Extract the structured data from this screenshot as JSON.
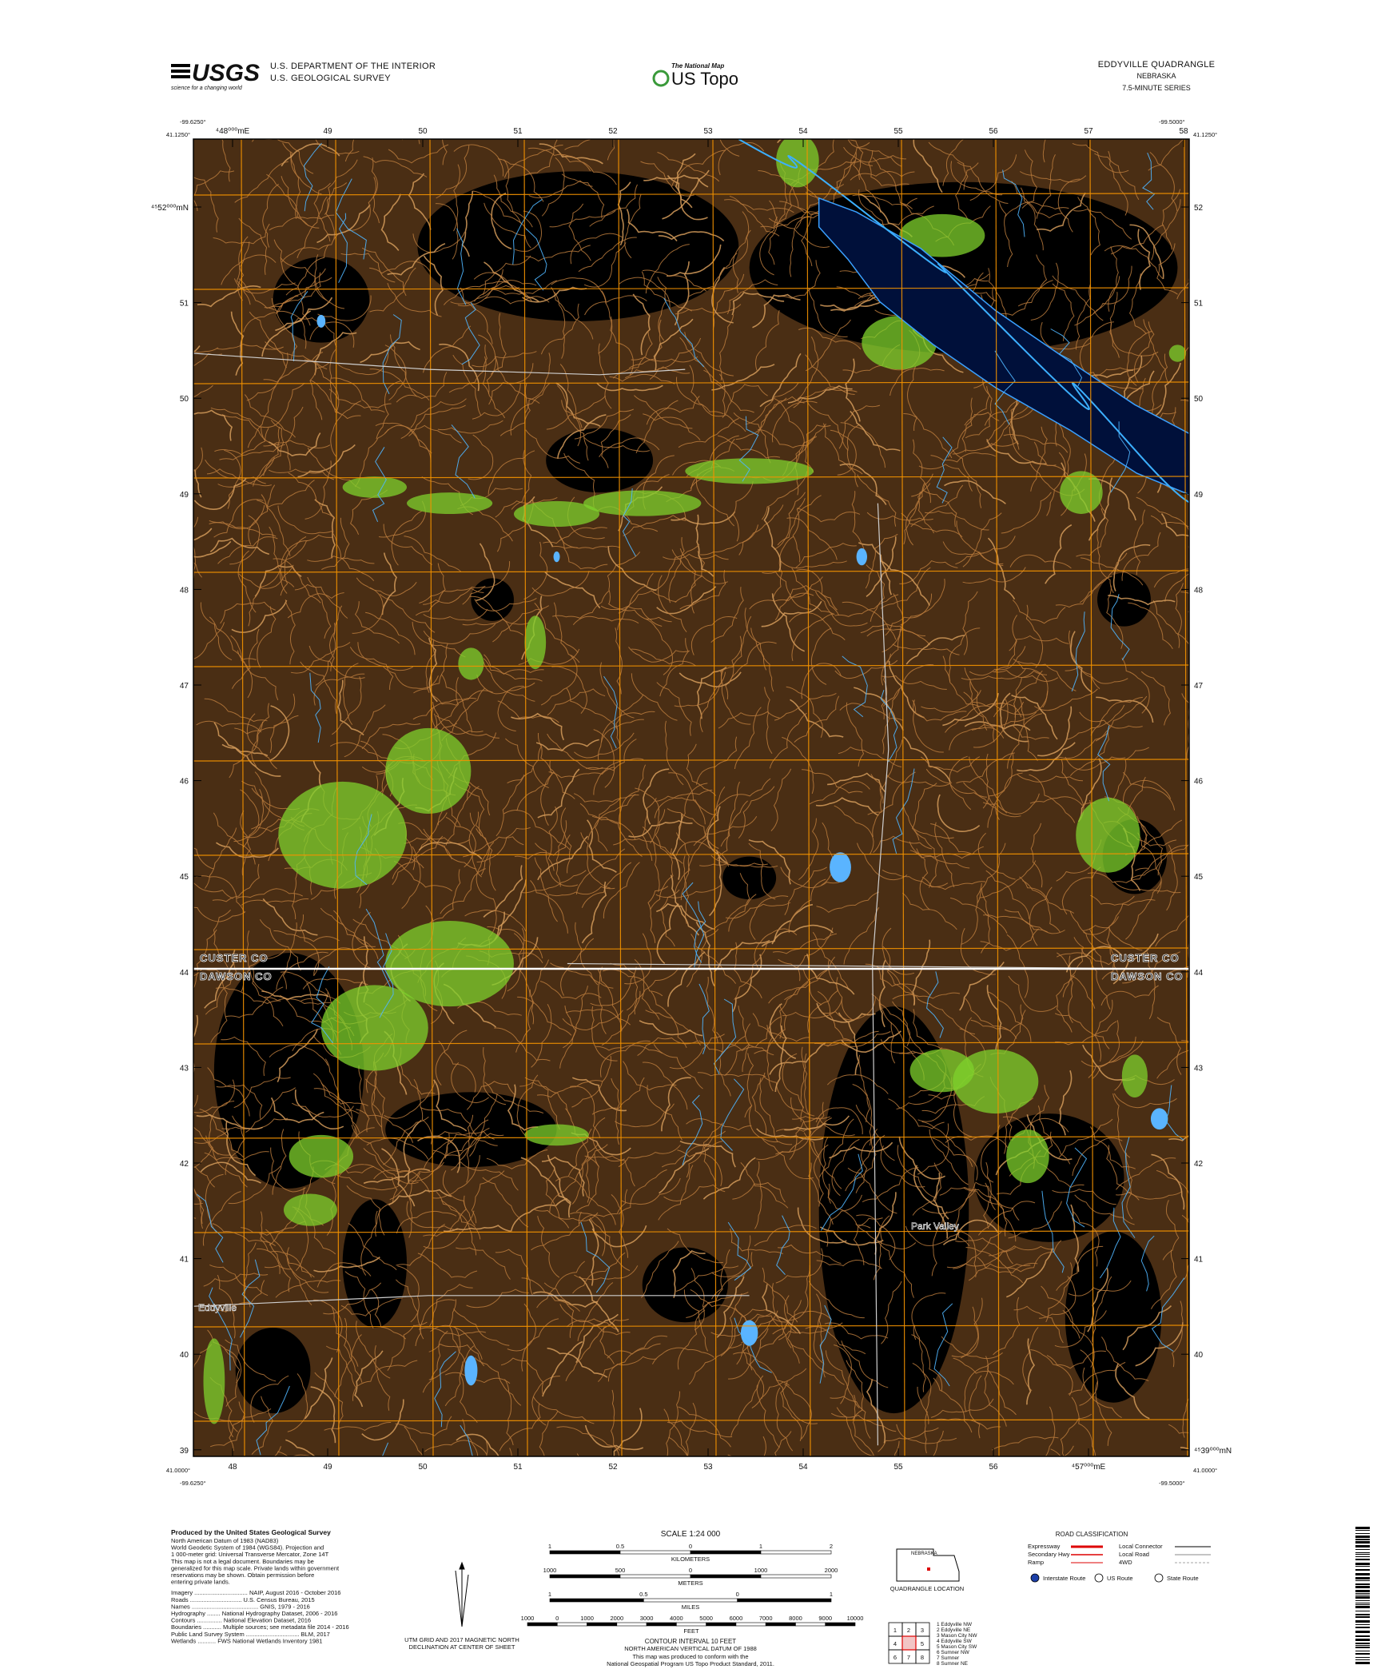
{
  "header": {
    "usgs_logo": "USGS",
    "usgs_tagline": "science for a changing world",
    "department": "U.S. DEPARTMENT OF THE INTERIOR",
    "survey": "U.S. GEOLOGICAL SURVEY",
    "national_map": "The National Map",
    "us_topo": "US Topo",
    "quadrangle": "EDDYVILLE QUADRANGLE",
    "state": "NEBRASKA",
    "series": "7.5-MINUTE SERIES"
  },
  "map": {
    "corners": {
      "top_left_lon": "-99.6250°",
      "top_left_lat": "41.1250°",
      "top_right_lon": "-99.5000°",
      "top_right_lat": "41.1250°",
      "bottom_left_lat": "41.0000°",
      "bottom_left_lon": "-99.6250°",
      "bottom_right_lat": "41.0000°",
      "bottom_right_lon": "-99.5000°"
    },
    "eastings_top": [
      "⁴48⁰⁰⁰mE",
      "49",
      "50",
      "51",
      "52",
      "53",
      "54",
      "55",
      "56",
      "57",
      "58"
    ],
    "eastings_bottom": [
      "48",
      "49",
      "50",
      "51",
      "52",
      "53",
      "54",
      "55",
      "56",
      "⁴57⁰⁰⁰mE"
    ],
    "northings_left": [
      "⁴⁵52⁰⁰⁰mN",
      "51",
      "50",
      "49",
      "48",
      "47",
      "46",
      "45",
      "44",
      "43",
      "42",
      "41",
      "40",
      "39"
    ],
    "northings_right": [
      "52",
      "51",
      "50",
      "49",
      "48",
      "47",
      "46",
      "45",
      "44",
      "43",
      "42",
      "41",
      "40",
      "⁴⁵39⁰⁰⁰mN"
    ],
    "county_labels": [
      "CUSTER CO",
      "DAWSON CO",
      "CUSTER CO",
      "DAWSON CO"
    ],
    "places": [
      "Eddyville",
      "Park Valley"
    ]
  },
  "footer": {
    "produced_by": "Produced by the United States Geological Survey",
    "notes": [
      "North American Datum of 1983 (NAD83)",
      "World Geodetic System of 1984 (WGS84). Projection and",
      "1 000-meter grid: Universal Transverse Mercator, Zone 14T",
      "This map is not a legal document. Boundaries may be",
      "generalized for this map scale. Private lands within government",
      "reservations may be shown. Obtain permission before",
      "entering private lands."
    ],
    "sources": [
      "Imagery ................................ NAIP, August 2016 - October 2016",
      "Roads ............................... U.S. Census Bureau, 2015",
      "Names ........................................ GNIS, 1979 - 2016",
      "Hydrography ........ National Hydrography Dataset, 2006 - 2016",
      "Contours ............... National Elevation Dataset, 2016",
      "Boundaries ........... Multiple sources; see metadata file 2014 - 2016",
      "Public Land Survey System ................................ BLM, 2017",
      "Wetlands ........... FWS National Wetlands Inventory 1981"
    ],
    "scale": "SCALE 1:24 000",
    "kilometers": "KILOMETERS",
    "km_ticks": [
      "1",
      "0.5",
      "0",
      "1",
      "2"
    ],
    "meters": "METERS",
    "m_ticks": [
      "1000",
      "500",
      "0",
      "1000",
      "2000"
    ],
    "miles": "MILES",
    "mi_ticks": [
      "1",
      "0.5",
      "0",
      "1"
    ],
    "feet": "FEET",
    "ft_ticks": [
      "1000",
      "0",
      "1000",
      "2000",
      "3000",
      "4000",
      "5000",
      "6000",
      "7000",
      "8000",
      "9000",
      "10000"
    ],
    "contour_interval": "CONTOUR INTERVAL 10 FEET",
    "vertical_datum": "NORTH AMERICAN VERTICAL DATUM OF 1988",
    "standard_1": "This map was produced to conform with the",
    "standard_2": "National Geospatial Program US Topo Product Standard, 2011.",
    "declination_1": "UTM GRID AND 2017 MAGNETIC NORTH",
    "declination_2": "DECLINATION AT CENTER OF SHEET",
    "road_title": "ROAD CLASSIFICATION",
    "roads_left": [
      "Expressway",
      "Secondary Hwy",
      "Ramp"
    ],
    "roads_right": [
      "Local Connector",
      "Local Road",
      "4WD"
    ],
    "routes": [
      "Interstate Route",
      "US Route",
      "State Route"
    ],
    "state_label": "NEBRASKA",
    "location_label": "QUADRANGLE LOCATION",
    "adjacent_numbers": [
      "1",
      "2",
      "3",
      "4",
      "5",
      "6",
      "7",
      "8"
    ],
    "adjacent": [
      "1 Eddyville NW",
      "2 Eddyville NE",
      "3 Mason City NW",
      "4 Eddyville SW",
      "5 Mason City SW",
      "6 Sumner NW",
      "7 Sumner",
      "8 Sumner NE"
    ]
  }
}
